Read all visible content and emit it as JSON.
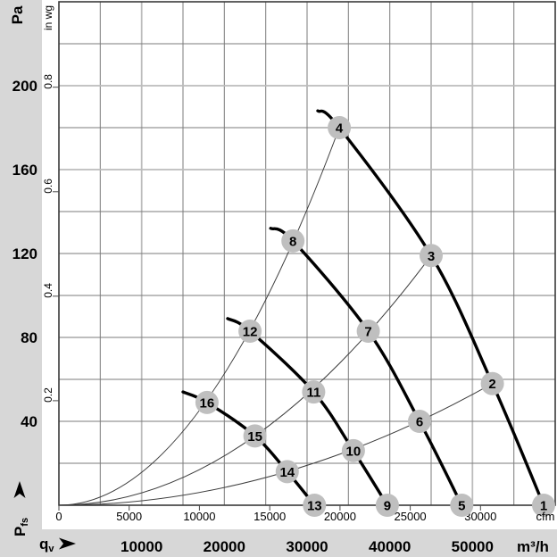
{
  "colors": {
    "background": "#d7d7d7",
    "plot_background": "#ffffff",
    "grid": "#7b7b7b",
    "grid_light": "#bcbcbc",
    "plot_border": "#3a3a3a",
    "fan_curve": "#000000",
    "system_curve": "#3d3d3d",
    "marker_fill": "#bfbfbf",
    "marker_text": "#ffffff",
    "tick": "#4a4a4a",
    "text": "#000000"
  },
  "labels": {
    "pa_unit": "Pa",
    "inwg_unit": "in wg",
    "cfm_unit": "cfm",
    "m3h_unit": "m³/h",
    "x_name_main": "q",
    "x_name_sub": "v",
    "y_name_main": "P",
    "y_name_sub": "fs"
  },
  "chart_data": {
    "type": "line",
    "x_axis": {
      "name": "qv",
      "unit_primary": "m³/h",
      "unit_secondary": "cfm",
      "range_m3h": [
        0,
        60000
      ],
      "ticks_m3h": [
        10000,
        20000,
        30000,
        40000,
        50000
      ],
      "ticks_cfm": [
        0,
        5000,
        10000,
        15000,
        20000,
        25000,
        30000
      ],
      "cfm_to_m3h": 1.699,
      "gridline_step_m3h": 5000
    },
    "y_axis": {
      "name": "Pfs",
      "unit_primary": "Pa",
      "unit_secondary": "in wg",
      "range_pa": [
        0,
        240
      ],
      "ticks_pa": [
        40,
        80,
        120,
        160,
        200
      ],
      "ticks_inwg": [
        0.2,
        0.4,
        0.6,
        0.8
      ],
      "inwg_to_pa": 249.1,
      "gridline_step_pa": 20
    },
    "grid": {
      "on": true,
      "light_columns_q": [
        10000,
        50000
      ],
      "light_rows_pa": [
        160,
        200
      ]
    },
    "fan_curves": [
      {
        "name": "fan-curve-1",
        "points_q_pa": [
          [
            31300,
            188
          ],
          [
            33900,
            180
          ],
          [
            45000,
            119
          ],
          [
            52400,
            58
          ],
          [
            58600,
            0
          ]
        ]
      },
      {
        "name": "fan-curve-2",
        "points_q_pa": [
          [
            25600,
            132
          ],
          [
            28300,
            126
          ],
          [
            37400,
            83
          ],
          [
            43600,
            40
          ],
          [
            48700,
            0
          ]
        ]
      },
      {
        "name": "fan-curve-3",
        "points_q_pa": [
          [
            20400,
            89
          ],
          [
            23100,
            83
          ],
          [
            30800,
            54
          ],
          [
            35600,
            26
          ],
          [
            39700,
            0
          ]
        ]
      },
      {
        "name": "fan-curve-4",
        "points_q_pa": [
          [
            15000,
            54
          ],
          [
            17900,
            49
          ],
          [
            23700,
            33
          ],
          [
            27600,
            16
          ],
          [
            30900,
            0
          ]
        ]
      }
    ],
    "system_curves": [
      {
        "name": "system-curve-a",
        "end_q_pa": [
          33900,
          180
        ],
        "through_points": [
          16,
          12,
          8,
          4
        ]
      },
      {
        "name": "system-curve-b",
        "end_q_pa": [
          45000,
          119
        ],
        "through_points": [
          15,
          11,
          7,
          3
        ]
      },
      {
        "name": "system-curve-c",
        "end_q_pa": [
          52400,
          58
        ],
        "through_points": [
          14,
          10,
          6,
          2
        ]
      }
    ],
    "operating_points": [
      {
        "id": 1,
        "q": 58600,
        "pa": 0
      },
      {
        "id": 2,
        "q": 52400,
        "pa": 58
      },
      {
        "id": 3,
        "q": 45000,
        "pa": 119
      },
      {
        "id": 4,
        "q": 33900,
        "pa": 180
      },
      {
        "id": 5,
        "q": 48700,
        "pa": 0
      },
      {
        "id": 6,
        "q": 43600,
        "pa": 40
      },
      {
        "id": 7,
        "q": 37400,
        "pa": 83
      },
      {
        "id": 8,
        "q": 28300,
        "pa": 126
      },
      {
        "id": 9,
        "q": 39700,
        "pa": 0
      },
      {
        "id": 10,
        "q": 35600,
        "pa": 26
      },
      {
        "id": 11,
        "q": 30800,
        "pa": 54
      },
      {
        "id": 12,
        "q": 23100,
        "pa": 83
      },
      {
        "id": 13,
        "q": 30900,
        "pa": 0
      },
      {
        "id": 14,
        "q": 27600,
        "pa": 16
      },
      {
        "id": 15,
        "q": 23700,
        "pa": 33
      },
      {
        "id": 16,
        "q": 17900,
        "pa": 49
      }
    ]
  }
}
